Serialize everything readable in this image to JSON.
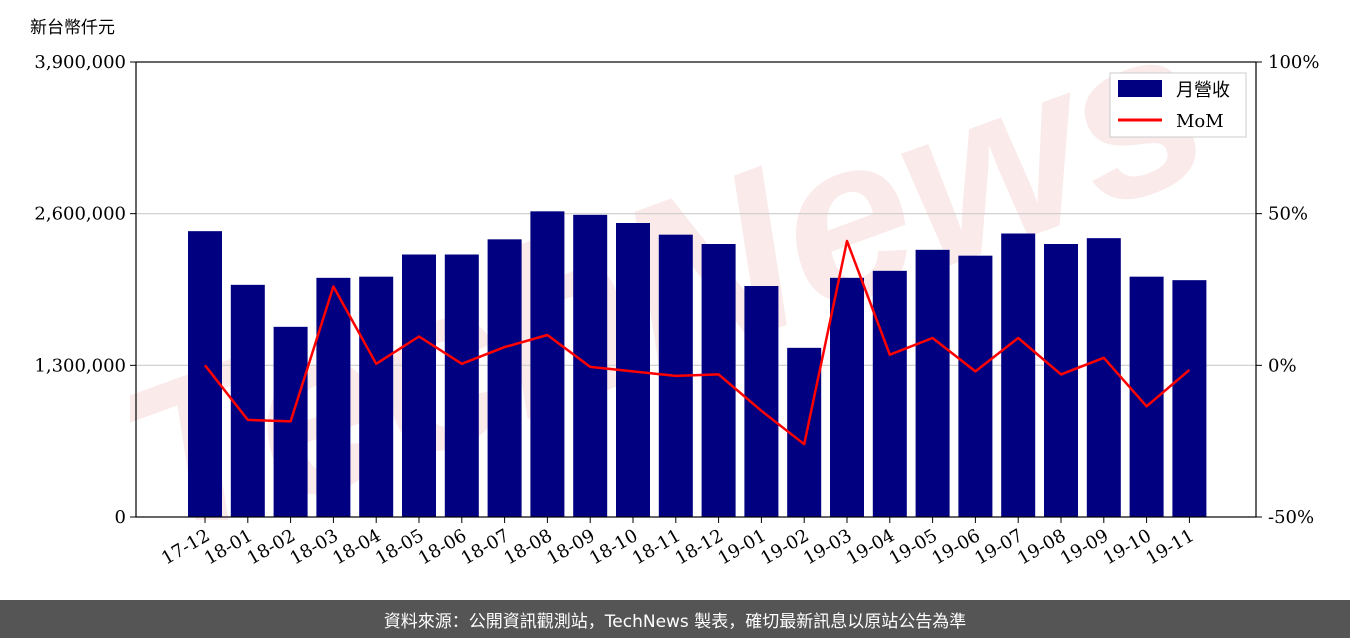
{
  "chart_data": {
    "type": "bar",
    "unit_label": "新台幣仟元",
    "categories": [
      "17-12",
      "18-01",
      "18-02",
      "18-03",
      "18-04",
      "18-05",
      "18-06",
      "18-07",
      "18-08",
      "18-09",
      "18-10",
      "18-11",
      "18-12",
      "19-01",
      "19-02",
      "19-03",
      "19-04",
      "19-05",
      "19-06",
      "19-07",
      "19-08",
      "19-09",
      "19-10",
      "19-11"
    ],
    "series": [
      {
        "name": "月營收",
        "type": "bar",
        "axis": "left",
        "color": "#000080",
        "values": [
          2450000,
          1990000,
          1630000,
          2050000,
          2060000,
          2250000,
          2250000,
          2380000,
          2620000,
          2590000,
          2520000,
          2420000,
          2340000,
          1980000,
          1450000,
          2050000,
          2110000,
          2290000,
          2240000,
          2430000,
          2340000,
          2390000,
          2060000,
          2030000
        ]
      },
      {
        "name": "MoM",
        "type": "line",
        "axis": "right",
        "color": "#ff0000",
        "values": [
          0.0,
          -18.0,
          -18.5,
          26.0,
          0.5,
          9.5,
          0.5,
          6.0,
          10.0,
          -0.5,
          -2.0,
          -3.5,
          -3.0,
          -15.0,
          -26.0,
          41.0,
          3.5,
          9.0,
          -2.0,
          9.0,
          -3.0,
          2.5,
          -13.5,
          -1.5
        ]
      }
    ],
    "y_left": {
      "ylim": [
        0,
        3900000
      ],
      "ticks": [
        0,
        1300000,
        2600000,
        3900000
      ],
      "tick_labels": [
        "0",
        "1,300,000",
        "2,600,000",
        "3,900,000"
      ]
    },
    "y_right": {
      "ylim": [
        -50,
        100
      ],
      "ticks": [
        -50,
        0,
        50,
        100
      ],
      "tick_labels": [
        "-50%",
        "0%",
        "50%",
        "100%"
      ]
    },
    "grid": "horizontal",
    "legend_position": "top-right",
    "legend": [
      {
        "label": "月營收",
        "kind": "bar"
      },
      {
        "label": "MoM",
        "kind": "line"
      }
    ]
  },
  "watermark": "TechNews",
  "footer": {
    "text": "資料來源：公開資訊觀測站，TechNews 製表，確切最新訊息以原站公告為準"
  },
  "colors": {
    "bar": "#000080",
    "line": "#ff0000",
    "footer_bg": "#555555",
    "watermark": "#f2c4c4"
  }
}
